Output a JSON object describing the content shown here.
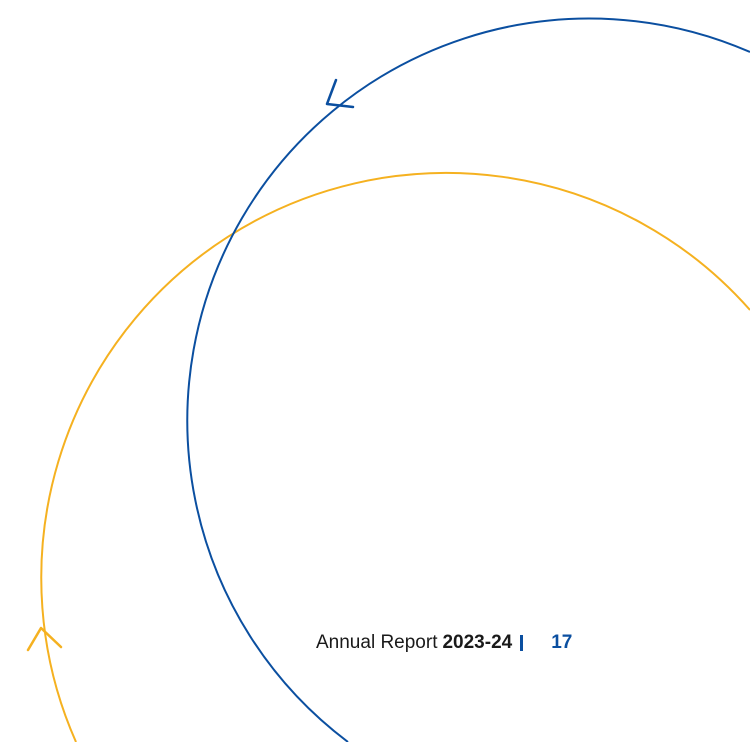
{
  "footer": {
    "report_label": "Annual Report",
    "year": "2023-24",
    "page_number": "17"
  },
  "colors": {
    "blue_arc": "#0b4fa0",
    "yellow_arc": "#f5b120",
    "text": "#1a1a1a"
  },
  "icons": {
    "blue_arrow": "arrowhead-icon",
    "yellow_arrow": "arrowhead-icon"
  }
}
